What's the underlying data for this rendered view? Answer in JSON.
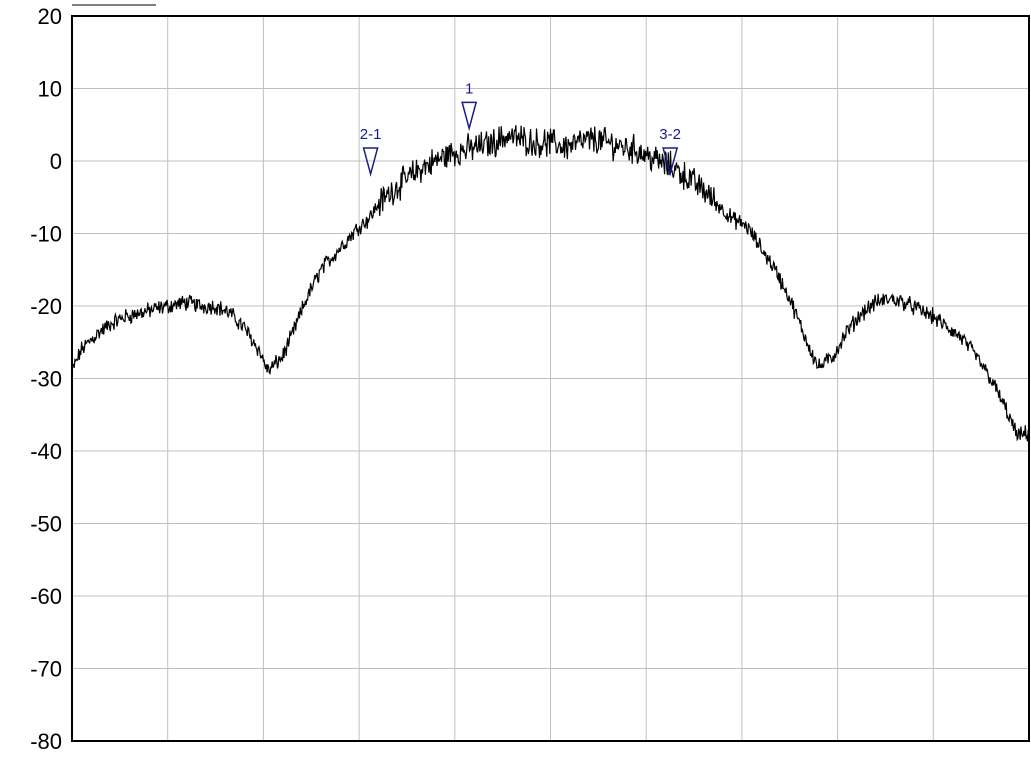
{
  "chart_data": {
    "type": "line",
    "title": "",
    "xlabel": "",
    "ylabel": "",
    "ylim": [
      -80,
      20
    ],
    "y_ticks": [
      "20",
      "10",
      "0",
      "-10",
      "-20",
      "-30",
      "-40",
      "-50",
      "-60",
      "-70",
      "-80"
    ],
    "x_range": [
      0,
      10
    ],
    "x_divisions": 10,
    "grid": true,
    "colors": {
      "trace": "#000000",
      "grid": "#c0c0c0",
      "marker": "#1a1a8c",
      "frame": "#000000"
    },
    "series": [
      {
        "values_x": [
          0.0,
          0.1,
          0.25,
          0.4,
          0.55,
          0.7,
          0.85,
          1.0,
          1.2,
          1.35,
          1.5,
          1.65,
          1.8,
          1.95,
          2.05,
          2.2,
          2.3,
          2.45,
          2.6,
          2.8,
          3.0,
          3.1,
          3.2,
          3.35,
          3.5,
          3.65,
          3.8,
          3.95,
          4.1,
          4.25,
          4.4,
          4.55,
          4.7,
          4.85,
          5.0,
          5.15,
          5.3,
          5.45,
          5.6,
          5.75,
          5.9,
          6.05,
          6.2,
          6.3,
          6.45,
          6.6,
          6.75,
          6.9,
          7.05,
          7.2,
          7.35,
          7.5,
          7.65,
          7.8,
          7.95,
          8.1,
          8.25,
          8.4,
          8.55,
          8.7,
          8.85,
          9.0,
          9.15,
          9.3,
          9.45,
          9.6,
          9.75,
          9.88,
          10.0
        ],
        "values_y": [
          -29,
          -26,
          -24,
          -22.5,
          -21.5,
          -21,
          -20.5,
          -20,
          -19.5,
          -20,
          -20,
          -21,
          -23,
          -26,
          -29,
          -27,
          -24,
          -19,
          -15,
          -12,
          -9,
          -8,
          -6,
          -4,
          -2.5,
          -1,
          0,
          1,
          1.5,
          2,
          2.5,
          3.5,
          3,
          2.5,
          2.5,
          2,
          2.5,
          3,
          2.5,
          2,
          1.5,
          0.5,
          -0.5,
          -1,
          -2.5,
          -4,
          -6,
          -8,
          -9,
          -12,
          -15,
          -19,
          -24,
          -28.5,
          -27,
          -23.5,
          -21,
          -19.5,
          -19,
          -19.5,
          -20.5,
          -21.5,
          -23,
          -24.5,
          -27,
          -30,
          -34,
          -38,
          -37.5
        ]
      }
    ],
    "markers": [
      {
        "label": "1",
        "x": 4.15,
        "y": 4.5
      },
      {
        "label": "2-1",
        "x": 3.12,
        "y": -1.8
      },
      {
        "label": "3-2",
        "x": 6.25,
        "y": -1.8
      }
    ]
  }
}
